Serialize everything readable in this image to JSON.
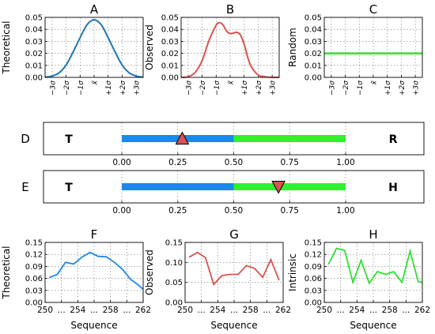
{
  "chart_data": [
    {
      "id": "A",
      "type": "line",
      "title": "A",
      "ylabel": "Theoretical",
      "xlabel": "",
      "ylim": [
        0,
        0.05
      ],
      "yticks": [
        "0.00",
        "0.01",
        "0.02",
        "0.03",
        "0.04",
        "0.05"
      ],
      "xlim": [
        -3.5,
        3.5
      ],
      "xticks": [
        {
          "value": -3,
          "label": "−3σ"
        },
        {
          "value": -2,
          "label": "−2σ"
        },
        {
          "value": -1,
          "label": "−1σ"
        },
        {
          "value": 0,
          "label": "x̄"
        },
        {
          "value": 1,
          "label": "+1σ"
        },
        {
          "value": 2,
          "label": "+2σ"
        },
        {
          "value": 3,
          "label": "+3σ"
        }
      ],
      "grid": true,
      "color": "#1f77b4",
      "series": [
        {
          "x": [
            -3.5,
            -3,
            -2.5,
            -2,
            -1.5,
            -1,
            -0.5,
            0,
            0.5,
            1,
            1.5,
            2,
            2.5,
            3,
            3.5
          ],
          "values": [
            0.0002,
            0.0011,
            0.0038,
            0.0103,
            0.0211,
            0.0331,
            0.0439,
            0.048,
            0.0439,
            0.0331,
            0.0211,
            0.0103,
            0.0038,
            0.0011,
            0.0002
          ]
        }
      ]
    },
    {
      "id": "B",
      "type": "line",
      "title": "B",
      "ylabel": "Observed",
      "xlabel": "",
      "ylim": [
        0,
        0.05
      ],
      "yticks": [
        "0.00",
        "0.01",
        "0.02",
        "0.03",
        "0.04",
        "0.05"
      ],
      "xlim": [
        -3.5,
        3.5
      ],
      "xticks": [
        {
          "value": -3,
          "label": "−3σ"
        },
        {
          "value": -2,
          "label": "−2σ"
        },
        {
          "value": -1,
          "label": "−1σ"
        },
        {
          "value": 0,
          "label": "x̄"
        },
        {
          "value": 1,
          "label": "+1σ"
        },
        {
          "value": 2,
          "label": "+2σ"
        },
        {
          "value": 3,
          "label": "+3σ"
        }
      ],
      "grid": true,
      "color": "#d9534f",
      "series": [
        {
          "x": [
            -3.5,
            -3,
            -2.5,
            -2,
            -1.5,
            -1,
            -0.75,
            -0.5,
            -0.25,
            0,
            0.25,
            0.5,
            0.75,
            1,
            1.25,
            1.5,
            2,
            2.5,
            3,
            3.5
          ],
          "values": [
            0,
            0.0005,
            0.004,
            0.014,
            0.031,
            0.0435,
            0.0455,
            0.0435,
            0.0385,
            0.0365,
            0.037,
            0.0375,
            0.035,
            0.0275,
            0.017,
            0.009,
            0.002,
            0.0005,
            0,
            0
          ]
        }
      ]
    },
    {
      "id": "C",
      "type": "line",
      "title": "C",
      "ylabel": "Random",
      "xlabel": "",
      "ylim": [
        0,
        0.05
      ],
      "yticks": [
        "0.00",
        "0.01",
        "0.02",
        "0.03",
        "0.04",
        "0.05"
      ],
      "xlim": [
        -3.5,
        3.5
      ],
      "xticks": [
        {
          "value": -3,
          "label": "−3σ"
        },
        {
          "value": -2,
          "label": "−2σ"
        },
        {
          "value": -1,
          "label": "−1σ"
        },
        {
          "value": 0,
          "label": "x̄"
        },
        {
          "value": 1,
          "label": "+1σ"
        },
        {
          "value": 2,
          "label": "+2σ"
        },
        {
          "value": 3,
          "label": "+3σ"
        }
      ],
      "grid": true,
      "color": "#33dd33",
      "series": [
        {
          "x": [
            -3.5,
            3.5
          ],
          "values": [
            0.02,
            0.02
          ]
        }
      ]
    },
    {
      "id": "D",
      "type": "bar",
      "title": "D",
      "xlim": [
        -0.35,
        1.35
      ],
      "xticks": [
        "0.00",
        "0.25",
        "0.50",
        "0.75",
        "1.00"
      ],
      "left_label": "T",
      "right_label": "R",
      "segments": [
        {
          "from": 0,
          "to": 0.5,
          "color": "#1e88e5"
        },
        {
          "from": 0.5,
          "to": 1.0,
          "color": "#33ee33"
        }
      ],
      "marker": {
        "value": 0.27,
        "shape": "triangle-up",
        "color": "#d9534f"
      }
    },
    {
      "id": "E",
      "type": "bar",
      "title": "E",
      "xlim": [
        -0.35,
        1.35
      ],
      "xticks": [
        "0.00",
        "0.25",
        "0.50",
        "0.75",
        "1.00"
      ],
      "left_label": "T",
      "right_label": "H",
      "segments": [
        {
          "from": 0,
          "to": 0.5,
          "color": "#1e88e5"
        },
        {
          "from": 0.5,
          "to": 1.0,
          "color": "#33ee33"
        }
      ],
      "marker": {
        "value": 0.7,
        "shape": "triangle-down",
        "color": "#d9534f"
      }
    },
    {
      "id": "F",
      "type": "line",
      "title": "F",
      "ylabel": "Theoretical",
      "xlabel": "Sequence",
      "ylim": [
        0,
        0.15
      ],
      "yticks": [
        "0.00",
        "0.03",
        "0.06",
        "0.09",
        "0.12",
        "0.15"
      ],
      "xlim": [
        250,
        262
      ],
      "xticks": [
        {
          "value": 250,
          "label": "250"
        },
        {
          "value": 252,
          "label": "..."
        },
        {
          "value": 254,
          "label": "254"
        },
        {
          "value": 256,
          "label": "..."
        },
        {
          "value": 258,
          "label": "258"
        },
        {
          "value": 260,
          "label": "..."
        },
        {
          "value": 262,
          "label": "262"
        }
      ],
      "grid": true,
      "color": "#1e88e5",
      "series": [
        {
          "x": [
            250.5,
            251.5,
            252.5,
            253.5,
            254.5,
            255.5,
            256.5,
            257.5,
            258.5,
            259.5,
            260.5,
            261.5,
            262
          ],
          "values": [
            0.062,
            0.07,
            0.1,
            0.096,
            0.113,
            0.125,
            0.115,
            0.114,
            0.1,
            0.082,
            0.057,
            0.042,
            0.033
          ]
        }
      ]
    },
    {
      "id": "G",
      "type": "line",
      "title": "G",
      "ylabel": "Observed",
      "xlabel": "Sequence",
      "ylim": [
        0,
        0.15
      ],
      "yticks": [
        "0.00",
        "0.05",
        "0.10",
        "0.15"
      ],
      "xlim": [
        250,
        262
      ],
      "xticks": [
        {
          "value": 250,
          "label": "250"
        },
        {
          "value": 252,
          "label": "..."
        },
        {
          "value": 254,
          "label": "254"
        },
        {
          "value": 256,
          "label": "..."
        },
        {
          "value": 258,
          "label": "258"
        },
        {
          "value": 260,
          "label": "..."
        },
        {
          "value": 262,
          "label": "262"
        }
      ],
      "grid": true,
      "color": "#d9534f",
      "series": [
        {
          "x": [
            250.5,
            251.5,
            252.5,
            253.5,
            254.5,
            255.5,
            256.5,
            257.5,
            258.5,
            259.5,
            260.5,
            261.5
          ],
          "values": [
            0.113,
            0.125,
            0.112,
            0.045,
            0.067,
            0.07,
            0.07,
            0.092,
            0.085,
            0.063,
            0.107,
            0.055
          ]
        }
      ]
    },
    {
      "id": "H",
      "type": "line",
      "title": "H",
      "ylabel": "Intrinsic",
      "xlabel": "Sequence",
      "ylim": [
        0,
        0.15
      ],
      "yticks": [
        "0.00",
        "0.03",
        "0.06",
        "0.09",
        "0.12",
        "0.15"
      ],
      "xlim": [
        250,
        262
      ],
      "xticks": [
        {
          "value": 250,
          "label": "250"
        },
        {
          "value": 252,
          "label": "..."
        },
        {
          "value": 254,
          "label": "254"
        },
        {
          "value": 256,
          "label": "..."
        },
        {
          "value": 258,
          "label": "258"
        },
        {
          "value": 260,
          "label": "..."
        },
        {
          "value": 262,
          "label": "262"
        }
      ],
      "grid": true,
      "color": "#33dd33",
      "series": [
        {
          "x": [
            250.5,
            251.5,
            252.5,
            253.5,
            254.5,
            255.5,
            256.5,
            257.5,
            258.5,
            259.5,
            260.5,
            261.5,
            262
          ],
          "values": [
            0.095,
            0.135,
            0.13,
            0.05,
            0.105,
            0.048,
            0.077,
            0.07,
            0.077,
            0.05,
            0.128,
            0.052,
            0.05
          ]
        }
      ]
    }
  ]
}
